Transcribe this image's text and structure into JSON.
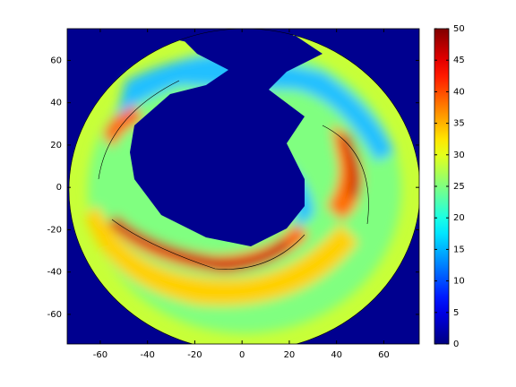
{
  "chart_data": {
    "type": "contour",
    "xlim": [
      -74,
      75
    ],
    "xticks": [
      -60,
      -40,
      -20,
      0,
      20,
      40,
      60
    ],
    "ylim": [
      -74,
      75
    ],
    "yticks": [
      -60,
      -40,
      -20,
      0,
      20,
      40,
      60
    ],
    "colorbar": {
      "colormap": "jet",
      "clim": [
        0,
        50
      ],
      "ticks": [
        0,
        5,
        10,
        15,
        20,
        25,
        30,
        35,
        40,
        45,
        50
      ]
    }
  }
}
